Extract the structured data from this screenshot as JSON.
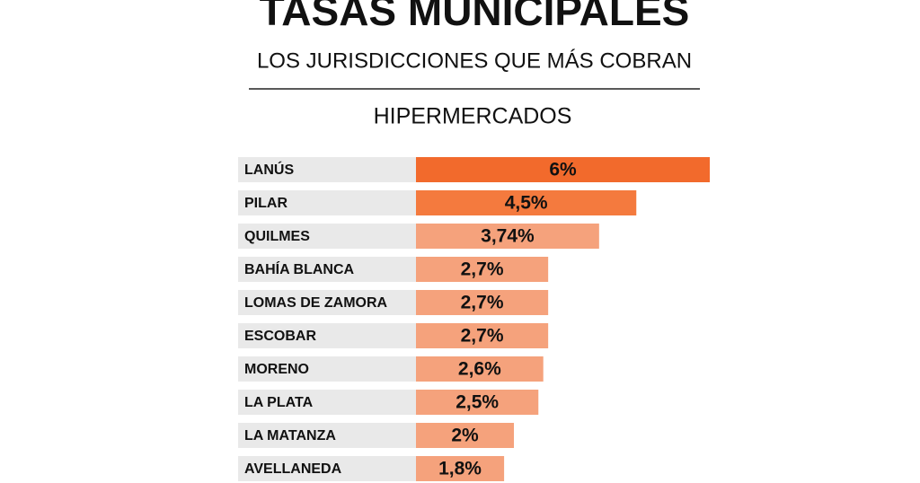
{
  "chart_data": {
    "type": "bar",
    "orientation": "horizontal",
    "title": "TASAS MUNICIPALES",
    "subtitle": "LOS JURISDICCIONES QUE MÁS COBRAN",
    "section": "HIPERMERCADOS",
    "categories": [
      "LANÚS",
      "PILAR",
      "QUILMES",
      "BAHÍA BLANCA",
      "LOMAS DE ZAMORA",
      "ESCOBAR",
      "MORENO",
      "LA PLATA",
      "LA MATANZA",
      "AVELLANEDA"
    ],
    "values": [
      6,
      4.5,
      3.74,
      2.7,
      2.7,
      2.7,
      2.6,
      2.5,
      2,
      1.8
    ],
    "value_labels": [
      "6%",
      "4,5%",
      "3,74%",
      "2,7%",
      "2,7%",
      "2,7%",
      "2,6%",
      "2,5%",
      "2%",
      "1,8%"
    ],
    "colors": [
      "#f26a2c",
      "#f47a3e",
      "#f5a27c",
      "#f5a27c",
      "#f5a27c",
      "#f5a27c",
      "#f5a27c",
      "#f5a27c",
      "#f5a27c",
      "#f5a27c"
    ]
  }
}
